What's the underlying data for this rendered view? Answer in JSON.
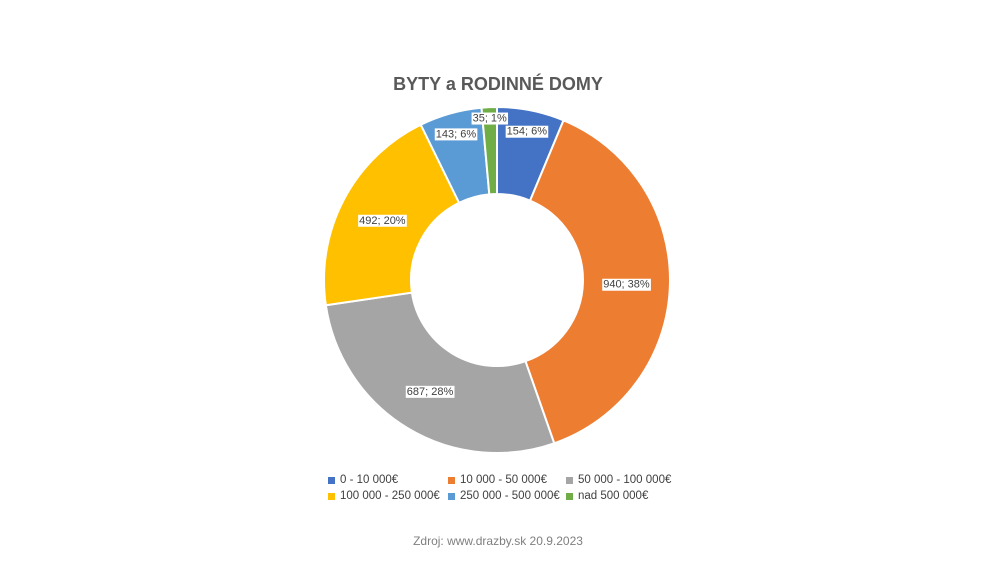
{
  "chart_data": {
    "type": "pie",
    "variant": "donut",
    "title": "BYTY a RODINNÉ DOMY",
    "categories": [
      "0 - 10 000€",
      "10 000 - 50 000€",
      "50 000 - 100 000€",
      "100 000 - 250 000€",
      "250 000 - 500 000€",
      "nad 500 000€"
    ],
    "values": [
      154,
      940,
      687,
      492,
      143,
      35
    ],
    "percent_labels": [
      "6%",
      "38%",
      "28%",
      "20%",
      "6%",
      "1%"
    ],
    "data_labels": [
      "154; 6%",
      "940; 38%",
      "687; 28%",
      "492; 20%",
      "143; 6%",
      "35; 1%"
    ],
    "colors": [
      "#4472C4",
      "#ED7D31",
      "#A5A5A5",
      "#FFC000",
      "#5B9BD5",
      "#70AD47"
    ],
    "legend_placement": "bottom"
  },
  "source": "Zdroj: www.drazby.sk 20.9.2023"
}
